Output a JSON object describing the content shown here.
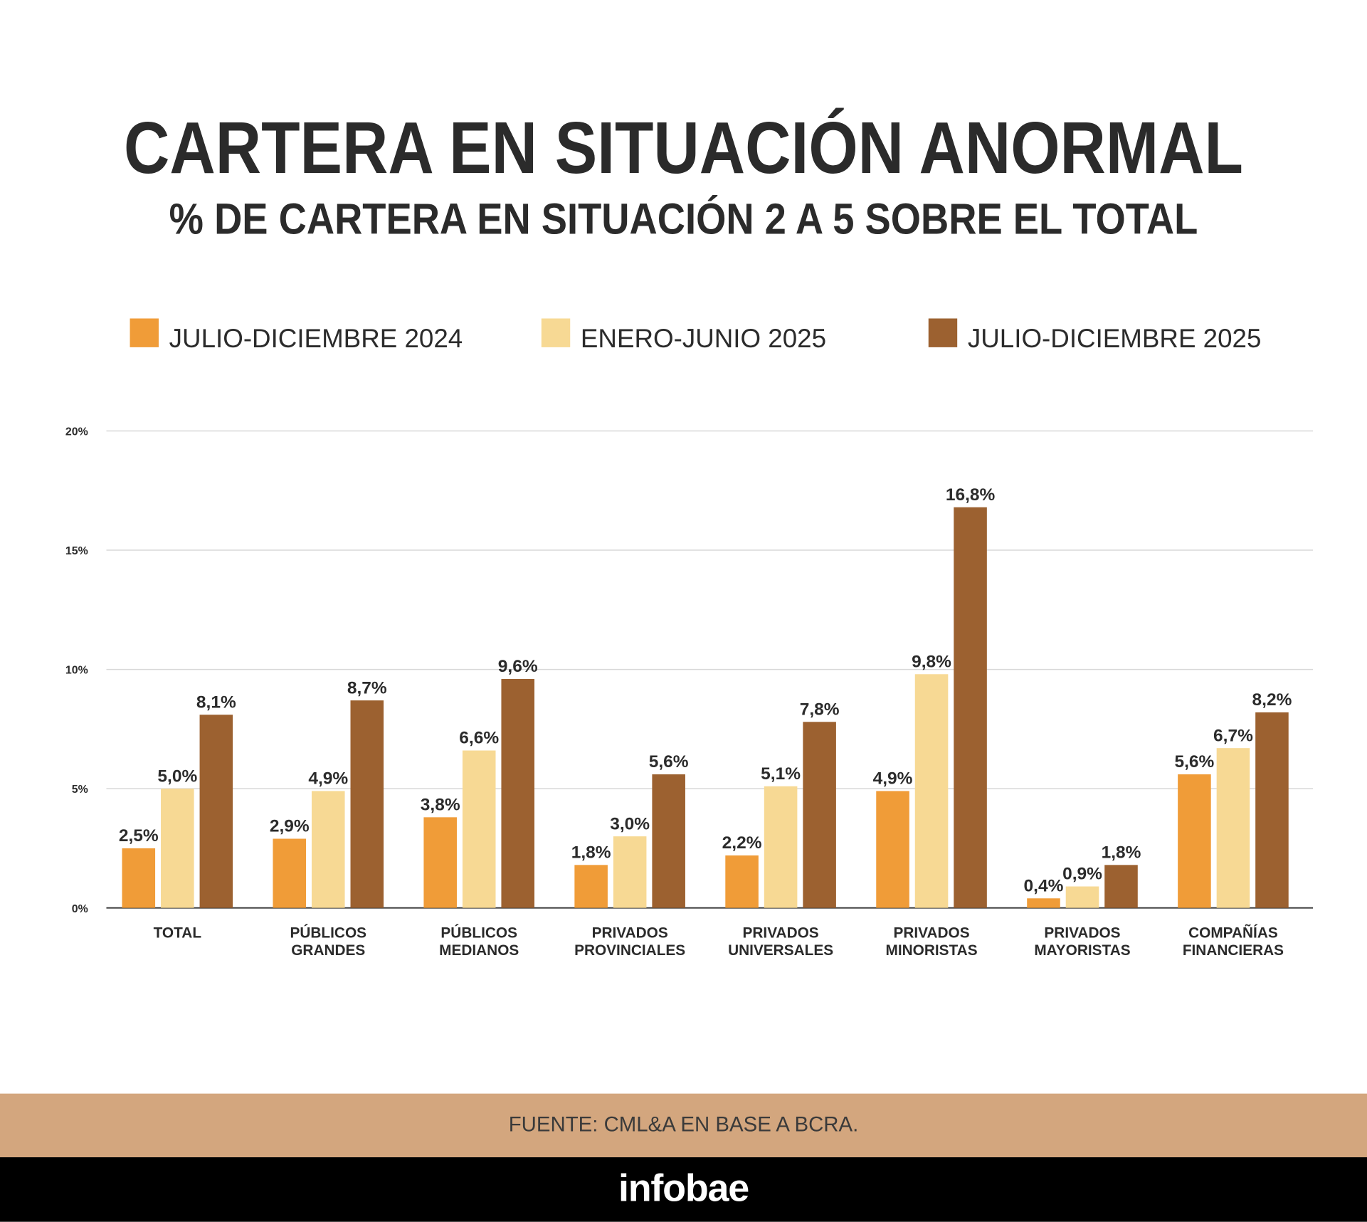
{
  "chart_data": {
    "type": "bar",
    "title": "CARTERA EN SITUACIÓN ANORMAL",
    "subtitle": "% DE CARTERA EN SITUACIÓN 2 A 5 SOBRE EL TOTAL",
    "categories": [
      [
        "TOTAL"
      ],
      [
        "PÚBLICOS",
        "GRANDES"
      ],
      [
        "PÚBLICOS",
        "MEDIANOS"
      ],
      [
        "PRIVADOS",
        "PROVINCIALES"
      ],
      [
        "PRIVADOS",
        "UNIVERSALES"
      ],
      [
        "PRIVADOS",
        "MINORISTAS"
      ],
      [
        "PRIVADOS",
        "MAYORISTAS"
      ],
      [
        "COMPAÑÍAS",
        "FINANCIERAS"
      ]
    ],
    "series": [
      {
        "name": "JULIO-DICIEMBRE 2024",
        "color": "#f09c38",
        "values": [
          2.5,
          2.9,
          3.8,
          1.8,
          2.2,
          4.9,
          0.4,
          5.6
        ],
        "value_labels": [
          "2,5%",
          "2,9%",
          "3,8%",
          "1,8%",
          "2,2%",
          "4,9%",
          "0,4%",
          "5,6%"
        ]
      },
      {
        "name": "ENERO-JUNIO 2025",
        "color": "#f7d994",
        "values": [
          5.0,
          4.9,
          6.6,
          3.0,
          5.1,
          9.8,
          0.9,
          6.7
        ],
        "value_labels": [
          "5,0%",
          "4,9%",
          "6,6%",
          "3,0%",
          "5,1%",
          "9,8%",
          "0,9%",
          "6,7%"
        ]
      },
      {
        "name": "JULIO-DICIEMBRE 2025",
        "color": "#9c6130",
        "values": [
          8.1,
          8.7,
          9.6,
          5.6,
          7.8,
          16.8,
          1.8,
          8.2
        ],
        "value_labels": [
          "8,1%",
          "8,7%",
          "9,6%",
          "5,6%",
          "7,8%",
          "16,8%",
          "1,8%",
          "8,2%"
        ]
      }
    ],
    "ylim": [
      0,
      20
    ],
    "yticks": [
      {
        "value": 0,
        "label": "0%"
      },
      {
        "value": 5,
        "label": "5%"
      },
      {
        "value": 10,
        "label": "10%"
      },
      {
        "value": 15,
        "label": "15%"
      },
      {
        "value": 20,
        "label": "20%"
      }
    ],
    "grid": true,
    "source": "FUENTE: CML&A EN BASE A BCRA.",
    "brand": "infobae"
  }
}
